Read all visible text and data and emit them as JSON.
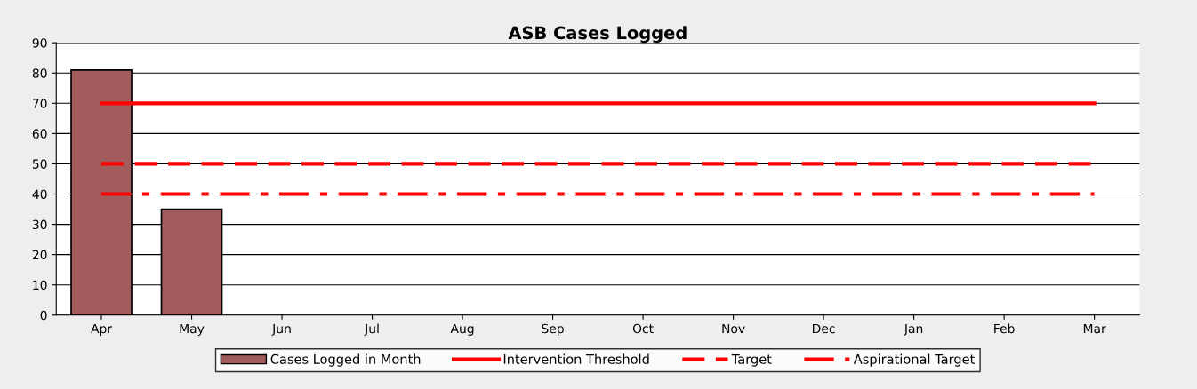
{
  "chart_data": {
    "type": "bar",
    "title": "ASB Cases Logged",
    "categories": [
      "Apr",
      "May",
      "Jun",
      "Jul",
      "Aug",
      "Sep",
      "Oct",
      "Nov",
      "Dec",
      "Jan",
      "Feb",
      "Mar"
    ],
    "series": [
      {
        "name": "Cases Logged in Month",
        "color": "#a35c5c",
        "values": [
          81,
          35,
          null,
          null,
          null,
          null,
          null,
          null,
          null,
          null,
          null,
          null
        ]
      },
      {
        "name": "Intervention Threshold",
        "type": "line",
        "color": "#ff0000",
        "line_style": "solid",
        "values": [
          70,
          70,
          70,
          70,
          70,
          70,
          70,
          70,
          70,
          70,
          70,
          70
        ]
      },
      {
        "name": "Target",
        "type": "line",
        "color": "#ff0000",
        "line_style": "dashed",
        "values": [
          50,
          50,
          50,
          50,
          50,
          50,
          50,
          50,
          50,
          50,
          50,
          50
        ]
      },
      {
        "name": "Aspirational Target",
        "type": "line",
        "color": "#ff0000",
        "line_style": "dashdot",
        "values": [
          40,
          40,
          40,
          40,
          40,
          40,
          40,
          40,
          40,
          40,
          40,
          40
        ]
      }
    ],
    "ylim": [
      0,
      90
    ],
    "yticks": [
      0,
      10,
      20,
      30,
      40,
      50,
      60,
      70,
      80,
      90
    ],
    "grid": "y",
    "legend": "bottom",
    "marker": "none"
  }
}
